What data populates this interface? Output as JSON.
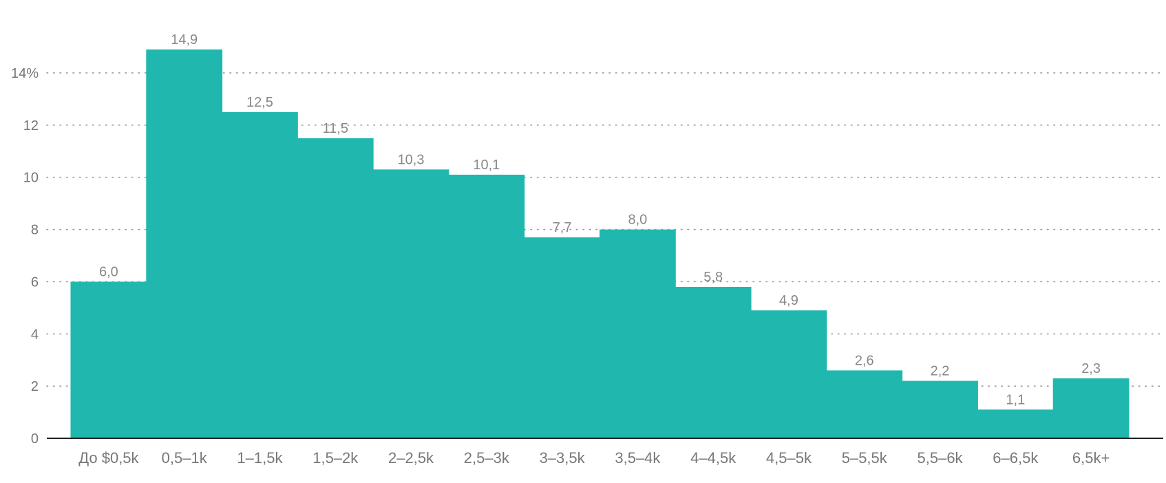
{
  "chart_data": {
    "type": "bar",
    "categories": [
      "До $0,5k",
      "0,5–1k",
      "1–1,5k",
      "1,5–2k",
      "2–2,5k",
      "2,5–3k",
      "3–3,5k",
      "3,5–4k",
      "4–4,5k",
      "4,5–5k",
      "5–5,5k",
      "5,5–6k",
      "6–6,5k",
      "6,5k+"
    ],
    "values": [
      6.0,
      14.9,
      12.5,
      11.5,
      10.3,
      10.1,
      7.7,
      8.0,
      5.8,
      4.9,
      2.6,
      2.2,
      1.1,
      2.3
    ],
    "value_labels": [
      "6,0",
      "14,9",
      "12,5",
      "11,5",
      "10,3",
      "10,1",
      "7,7",
      "8,0",
      "5,8",
      "4,9",
      "2,6",
      "2,2",
      "1,1",
      "2,3"
    ],
    "yticks": [
      0,
      2,
      4,
      6,
      8,
      10,
      12,
      14
    ],
    "ytick_labels": [
      "0",
      "2",
      "4",
      "6",
      "8",
      "10",
      "12",
      "14%"
    ],
    "ylim": [
      0,
      14.9
    ],
    "grid": true,
    "bar_color": "#20b8ae",
    "title": "",
    "xlabel": "",
    "ylabel": ""
  }
}
